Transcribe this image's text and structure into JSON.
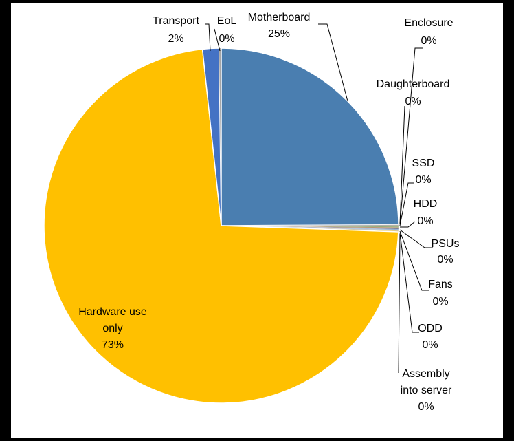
{
  "chart_data": {
    "type": "pie",
    "title": "",
    "slices": [
      {
        "name": "Motherboard",
        "value": 25,
        "label": "25%",
        "color": "#4a7eb0"
      },
      {
        "name": "Enclosure",
        "value": 0.08,
        "label": "0%",
        "color": "#8a8a8a"
      },
      {
        "name": "Daughterboard",
        "value": 0.08,
        "label": "0%",
        "color": "#c9a227"
      },
      {
        "name": "SSD",
        "value": 0.08,
        "label": "0%",
        "color": "#6d8f4e"
      },
      {
        "name": "HDD",
        "value": 0.08,
        "label": "0%",
        "color": "#9c6a3a"
      },
      {
        "name": "PSUs",
        "value": 0.08,
        "label": "0%",
        "color": "#5a5a7a"
      },
      {
        "name": "Fans",
        "value": 0.08,
        "label": "0%",
        "color": "#7fa3c9"
      },
      {
        "name": "ODD",
        "value": 0.08,
        "label": "0%",
        "color": "#a6a6a6"
      },
      {
        "name": "Assembly into server",
        "value": 0.08,
        "label": "0%",
        "color": "#d9a400"
      },
      {
        "name": "Hardware use only",
        "value": 73,
        "label": "73%",
        "color": "#ffc000"
      },
      {
        "name": "Transport",
        "value": 1.5,
        "label": "2%",
        "color": "#4472c4"
      },
      {
        "name": "EoL",
        "value": 0.2,
        "label": "0%",
        "color": "#a5a5a5"
      }
    ]
  }
}
